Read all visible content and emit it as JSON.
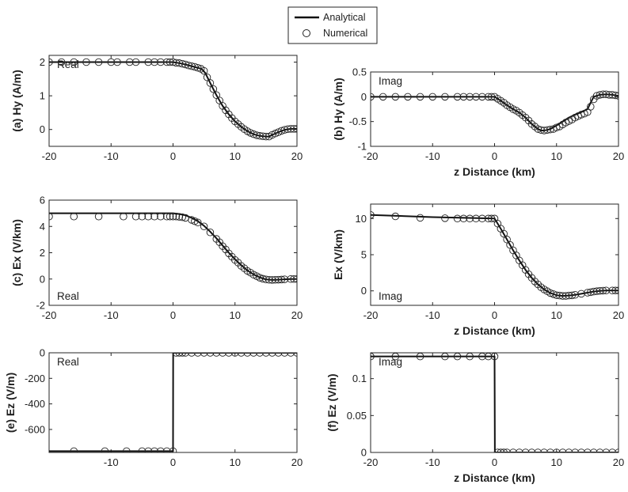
{
  "colors": {
    "line": "#111111",
    "marker": "#222222",
    "axes": "#262626",
    "background": "#ffffff"
  },
  "legend": {
    "placement": "top-center",
    "entries": [
      {
        "label": "Analytical",
        "style": "line"
      },
      {
        "label": "Numerical",
        "style": "marker"
      }
    ]
  },
  "chart_data": [
    {
      "id": "a",
      "type": "line",
      "title": "",
      "ylabel": "(a) Hy (A/m)",
      "xlabel": "",
      "annotation": "Real",
      "annotation_pos": "top-left",
      "xlim": [
        -20,
        20
      ],
      "ylim": [
        -0.5,
        2.2
      ],
      "xticks": [
        -20,
        -10,
        0,
        10,
        20
      ],
      "yticks": [
        0,
        1,
        2
      ],
      "ytick_labels": [
        "0",
        "1",
        "2"
      ],
      "series": [
        {
          "name": "Analytical",
          "x": [
            -20,
            -2,
            0,
            1,
            2,
            3,
            4,
            4.6,
            5.2,
            6,
            7,
            8,
            9,
            10,
            11,
            12,
            13,
            14,
            15,
            15.5,
            16,
            17,
            18,
            19,
            20
          ],
          "y": [
            2.0,
            2.0,
            2.0,
            1.97,
            1.93,
            1.88,
            1.83,
            1.8,
            1.68,
            1.38,
            1.02,
            0.7,
            0.45,
            0.24,
            0.08,
            -0.05,
            -0.14,
            -0.19,
            -0.21,
            -0.21,
            -0.16,
            -0.08,
            -0.01,
            0.02,
            0.02
          ]
        },
        {
          "name": "Numerical",
          "x": [
            -20,
            -18,
            -16,
            -14,
            -12,
            -10,
            -9,
            -7,
            -6,
            -4,
            -3,
            -2,
            -1,
            -0.5,
            0,
            0.5,
            1,
            1.5,
            2,
            2.5,
            3,
            3.5,
            4,
            4.5,
            5,
            5.5,
            6,
            6.5,
            7,
            7.5,
            8,
            8.5,
            9,
            9.5,
            10,
            10.5,
            11,
            11.5,
            12,
            12.5,
            13,
            13.5,
            14,
            14.5,
            15,
            15.5,
            16,
            16.5,
            17,
            17.5,
            18,
            18.5,
            19,
            19.5,
            20
          ],
          "y": [
            2.0,
            2.0,
            2.0,
            2.0,
            2.0,
            2.0,
            2.0,
            2.0,
            2.0,
            2.0,
            2.0,
            2.0,
            2.0,
            2.0,
            2.0,
            1.98,
            1.97,
            1.95,
            1.93,
            1.9,
            1.88,
            1.86,
            1.83,
            1.8,
            1.74,
            1.55,
            1.38,
            1.2,
            1.02,
            0.86,
            0.7,
            0.57,
            0.45,
            0.34,
            0.24,
            0.16,
            0.08,
            0.01,
            -0.05,
            -0.1,
            -0.14,
            -0.17,
            -0.19,
            -0.2,
            -0.21,
            -0.21,
            -0.16,
            -0.12,
            -0.08,
            -0.04,
            -0.01,
            0.01,
            0.02,
            0.02,
            0.02
          ]
        }
      ]
    },
    {
      "id": "b",
      "type": "line",
      "title": "",
      "ylabel": "(b) Hy (A/m)",
      "xlabel": "z Distance (km)",
      "annotation": "Imag",
      "annotation_pos": "top-left",
      "xlim": [
        -20,
        20
      ],
      "ylim": [
        -1,
        0.5
      ],
      "xticks": [
        -20,
        -10,
        0,
        10,
        20
      ],
      "yticks": [
        -1,
        -0.5,
        0,
        0.5
      ],
      "ytick_labels": [
        "-1",
        "-0.5",
        "0",
        "0.5"
      ],
      "series": [
        {
          "name": "Analytical",
          "x": [
            -20,
            -1,
            0,
            1,
            2,
            3,
            4,
            5,
            6,
            7,
            7.5,
            8,
            8.5,
            9,
            10,
            11,
            12,
            13,
            14,
            15,
            15.5,
            16,
            17,
            18,
            19,
            20
          ],
          "y": [
            0,
            0,
            0,
            -0.08,
            -0.17,
            -0.25,
            -0.32,
            -0.42,
            -0.55,
            -0.65,
            -0.68,
            -0.68,
            -0.67,
            -0.65,
            -0.58,
            -0.5,
            -0.42,
            -0.36,
            -0.31,
            -0.25,
            -0.12,
            0.0,
            0.04,
            0.05,
            0.04,
            0.02
          ]
        },
        {
          "name": "Numerical",
          "x": [
            -20,
            -18,
            -16,
            -14,
            -12,
            -10,
            -8,
            -6,
            -5,
            -4,
            -3,
            -2,
            -1,
            -0.5,
            0,
            0.5,
            1,
            1.5,
            2,
            2.5,
            3,
            3.5,
            4,
            4.5,
            5,
            5.5,
            6,
            6.5,
            7,
            7.5,
            8,
            8.5,
            9,
            9.5,
            10,
            10.5,
            11,
            11.5,
            12,
            12.5,
            13,
            13.5,
            14,
            14.5,
            15,
            15.5,
            16,
            16.5,
            17,
            17.5,
            18,
            18.5,
            19,
            19.5,
            20
          ],
          "y": [
            0,
            0,
            0,
            0,
            0,
            0,
            0,
            0,
            0,
            0,
            0,
            0,
            0,
            0,
            0,
            -0.04,
            -0.08,
            -0.12,
            -0.17,
            -0.21,
            -0.25,
            -0.28,
            -0.32,
            -0.37,
            -0.42,
            -0.48,
            -0.55,
            -0.6,
            -0.65,
            -0.67,
            -0.68,
            -0.67,
            -0.66,
            -0.65,
            -0.62,
            -0.6,
            -0.56,
            -0.52,
            -0.49,
            -0.46,
            -0.42,
            -0.39,
            -0.36,
            -0.34,
            -0.31,
            -0.2,
            -0.05,
            0.02,
            0.04,
            0.05,
            0.05,
            0.04,
            0.04,
            0.03,
            0.02
          ]
        }
      ]
    },
    {
      "id": "c",
      "type": "line",
      "title": "",
      "ylabel": "(c) Ex (V/km)",
      "xlabel": "",
      "annotation": "Real",
      "annotation_pos": "bottom-left",
      "xlim": [
        -20,
        20
      ],
      "ylim": [
        -2,
        6
      ],
      "xticks": [
        -20,
        -10,
        0,
        10,
        20
      ],
      "yticks": [
        -2,
        0,
        2,
        4,
        6
      ],
      "ytick_labels": [
        "-2",
        "0",
        "2",
        "4",
        "6"
      ],
      "series": [
        {
          "name": "Analytical",
          "x": [
            -20,
            -2,
            0,
            1,
            2,
            3,
            4,
            5,
            6,
            7,
            8,
            9,
            10,
            11,
            12,
            13,
            14,
            15,
            16,
            17,
            18,
            19,
            20
          ],
          "y": [
            5.0,
            5.0,
            5.0,
            4.95,
            4.85,
            4.65,
            4.4,
            4.05,
            3.6,
            3.1,
            2.55,
            2.0,
            1.5,
            1.05,
            0.65,
            0.35,
            0.12,
            -0.03,
            -0.07,
            -0.05,
            -0.02,
            0.0,
            0.0
          ]
        },
        {
          "name": "Numerical",
          "x": [
            -20,
            -16,
            -12,
            -8,
            -6,
            -5,
            -4,
            -3,
            -2,
            -1,
            -0.5,
            0,
            0.5,
            1,
            1.5,
            2,
            3,
            3.5,
            4,
            5,
            6,
            7,
            7.5,
            8,
            8.5,
            9,
            9.5,
            10,
            10.5,
            11,
            11.5,
            12,
            12.5,
            13,
            13.5,
            14,
            14.5,
            15,
            15.5,
            16,
            16.5,
            17,
            17.5,
            18,
            19,
            19.5,
            20
          ],
          "y": [
            4.75,
            4.75,
            4.75,
            4.75,
            4.75,
            4.75,
            4.75,
            4.75,
            4.75,
            4.75,
            4.75,
            4.75,
            4.75,
            4.73,
            4.7,
            4.65,
            4.5,
            4.4,
            4.3,
            4.0,
            3.55,
            3.05,
            2.8,
            2.5,
            2.25,
            1.95,
            1.7,
            1.45,
            1.25,
            1.0,
            0.82,
            0.62,
            0.48,
            0.33,
            0.22,
            0.1,
            0.02,
            -0.03,
            -0.06,
            -0.07,
            -0.06,
            -0.05,
            -0.04,
            -0.02,
            0.0,
            0.0,
            0.0
          ]
        }
      ]
    },
    {
      "id": "d",
      "type": "line",
      "title": "",
      "ylabel": "Ex (V/km)",
      "xlabel": "z Distance (km)",
      "annotation": "Imag",
      "annotation_pos": "bottom-left",
      "xlim": [
        -20,
        20
      ],
      "ylim": [
        -2,
        12
      ],
      "xticks": [
        -20,
        -10,
        0,
        10,
        20
      ],
      "yticks": [
        0,
        5,
        10
      ],
      "ytick_labels": [
        "0",
        "5",
        "10"
      ],
      "series": [
        {
          "name": "Analytical",
          "x": [
            -20,
            -10,
            -2,
            0,
            1,
            2,
            3,
            4,
            5,
            6,
            7,
            8,
            9,
            10,
            11,
            12,
            13,
            14,
            15,
            16,
            17,
            18,
            19,
            20
          ],
          "y": [
            10.5,
            10.2,
            10.05,
            10.0,
            8.6,
            7.1,
            5.6,
            4.2,
            2.9,
            1.8,
            0.9,
            0.2,
            -0.3,
            -0.6,
            -0.7,
            -0.65,
            -0.55,
            -0.4,
            -0.25,
            -0.1,
            0.0,
            0.05,
            0.05,
            0.05
          ]
        },
        {
          "name": "Numerical",
          "x": [
            -20,
            -16,
            -12,
            -8,
            -6,
            -5,
            -4,
            -3,
            -2,
            -1,
            -0.5,
            0,
            0.5,
            1,
            1.5,
            2,
            2.5,
            3,
            3.5,
            4,
            4.5,
            5,
            5.5,
            6,
            6.5,
            7,
            7.5,
            8,
            8.5,
            9,
            9.5,
            10,
            10.5,
            11,
            11.5,
            12,
            12.5,
            13,
            14,
            15,
            15.5,
            16,
            16.5,
            17,
            17.5,
            18,
            19,
            19.5,
            20
          ],
          "y": [
            10.5,
            10.3,
            10.1,
            10.05,
            10.0,
            10.0,
            10.0,
            10.0,
            10.0,
            10.0,
            10.0,
            10.0,
            9.3,
            8.6,
            7.9,
            7.1,
            6.35,
            5.6,
            4.9,
            4.2,
            3.55,
            2.9,
            2.3,
            1.8,
            1.3,
            0.9,
            0.5,
            0.2,
            -0.05,
            -0.3,
            -0.45,
            -0.6,
            -0.65,
            -0.7,
            -0.7,
            -0.65,
            -0.62,
            -0.55,
            -0.4,
            -0.25,
            -0.18,
            -0.1,
            -0.05,
            0.0,
            0.03,
            0.05,
            0.05,
            0.05,
            0.05
          ]
        }
      ]
    },
    {
      "id": "e",
      "type": "line",
      "title": "",
      "ylabel": "(e) Ez (V/m)",
      "xlabel": "",
      "annotation": "Real",
      "annotation_pos": "top-left",
      "xlim": [
        -20,
        20
      ],
      "ylim": [
        -780,
        0
      ],
      "xticks": [
        -10,
        0,
        10,
        20
      ],
      "yticks": [
        -600,
        -400,
        -200,
        0
      ],
      "ytick_labels": [
        "-600",
        "-400",
        "-200",
        "0"
      ],
      "series": [
        {
          "name": "Analytical",
          "x": [
            -20,
            0,
            0.02,
            20
          ],
          "y": [
            -770,
            -770,
            0,
            0
          ]
        },
        {
          "name": "Numerical",
          "x": [
            -16,
            -11,
            -7.5,
            -5,
            -4,
            -3,
            -2,
            -1,
            0,
            0.5,
            1,
            1.5,
            2,
            3,
            4,
            5,
            6,
            7,
            8,
            9,
            10,
            11,
            12,
            13,
            14,
            15,
            16,
            17,
            18,
            19,
            20
          ],
          "y": [
            -770,
            -770,
            -770,
            -770,
            -770,
            -770,
            -770,
            -770,
            -770,
            0,
            0,
            0,
            0,
            0,
            0,
            0,
            0,
            0,
            0,
            0,
            0,
            0,
            0,
            0,
            0,
            0,
            0,
            0,
            0,
            0,
            0
          ]
        }
      ]
    },
    {
      "id": "f",
      "type": "line",
      "title": "",
      "ylabel": "(f) Ez (V/m)",
      "xlabel": "z Distance (km)",
      "annotation": "Imag",
      "annotation_pos": "top-left",
      "xlim": [
        -20,
        20
      ],
      "ylim": [
        0,
        0.135
      ],
      "xticks": [
        -20,
        -10,
        0,
        10,
        20
      ],
      "yticks": [
        0,
        0.05,
        0.1
      ],
      "ytick_labels": [
        "0",
        "0.05",
        "0.1"
      ],
      "series": [
        {
          "name": "Analytical",
          "x": [
            -20,
            0,
            0.05,
            20
          ],
          "y": [
            0.13,
            0.13,
            0,
            0
          ]
        },
        {
          "name": "Numerical",
          "x": [
            -20,
            -16,
            -12,
            -8,
            -6,
            -4,
            -2,
            -1,
            0,
            0.5,
            1,
            1.5,
            2,
            3,
            4,
            5,
            6,
            7,
            8,
            9,
            10,
            11,
            12,
            13,
            14,
            15,
            16,
            17,
            18,
            19,
            20
          ],
          "y": [
            0.13,
            0.13,
            0.13,
            0.13,
            0.13,
            0.13,
            0.13,
            0.13,
            0.13,
            0,
            0,
            0,
            0,
            0,
            0,
            0,
            0,
            0,
            0,
            0,
            0,
            0,
            0,
            0,
            0,
            0,
            0,
            0,
            0,
            0,
            0
          ]
        }
      ]
    }
  ]
}
